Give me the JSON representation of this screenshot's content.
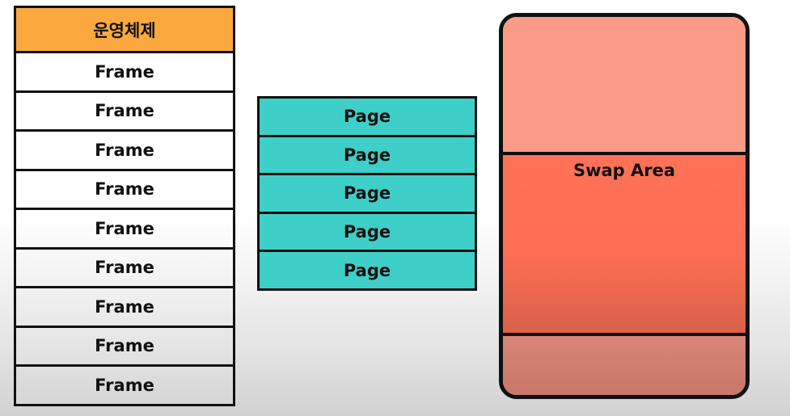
{
  "physical_memory": {
    "os_label": "운영체제",
    "frames": [
      "Frame",
      "Frame",
      "Frame",
      "Frame",
      "Frame",
      "Frame",
      "Frame",
      "Frame",
      "Frame"
    ]
  },
  "pages": {
    "items": [
      "Page",
      "Page",
      "Page",
      "Page",
      "Page"
    ]
  },
  "disk": {
    "swap_label": "Swap Area"
  },
  "colors": {
    "os": "#fba93e",
    "page": "#3ecfc8",
    "disk_top": "#fa9b87",
    "swap": "#ff7257",
    "disk_bottom": "#d98577"
  }
}
